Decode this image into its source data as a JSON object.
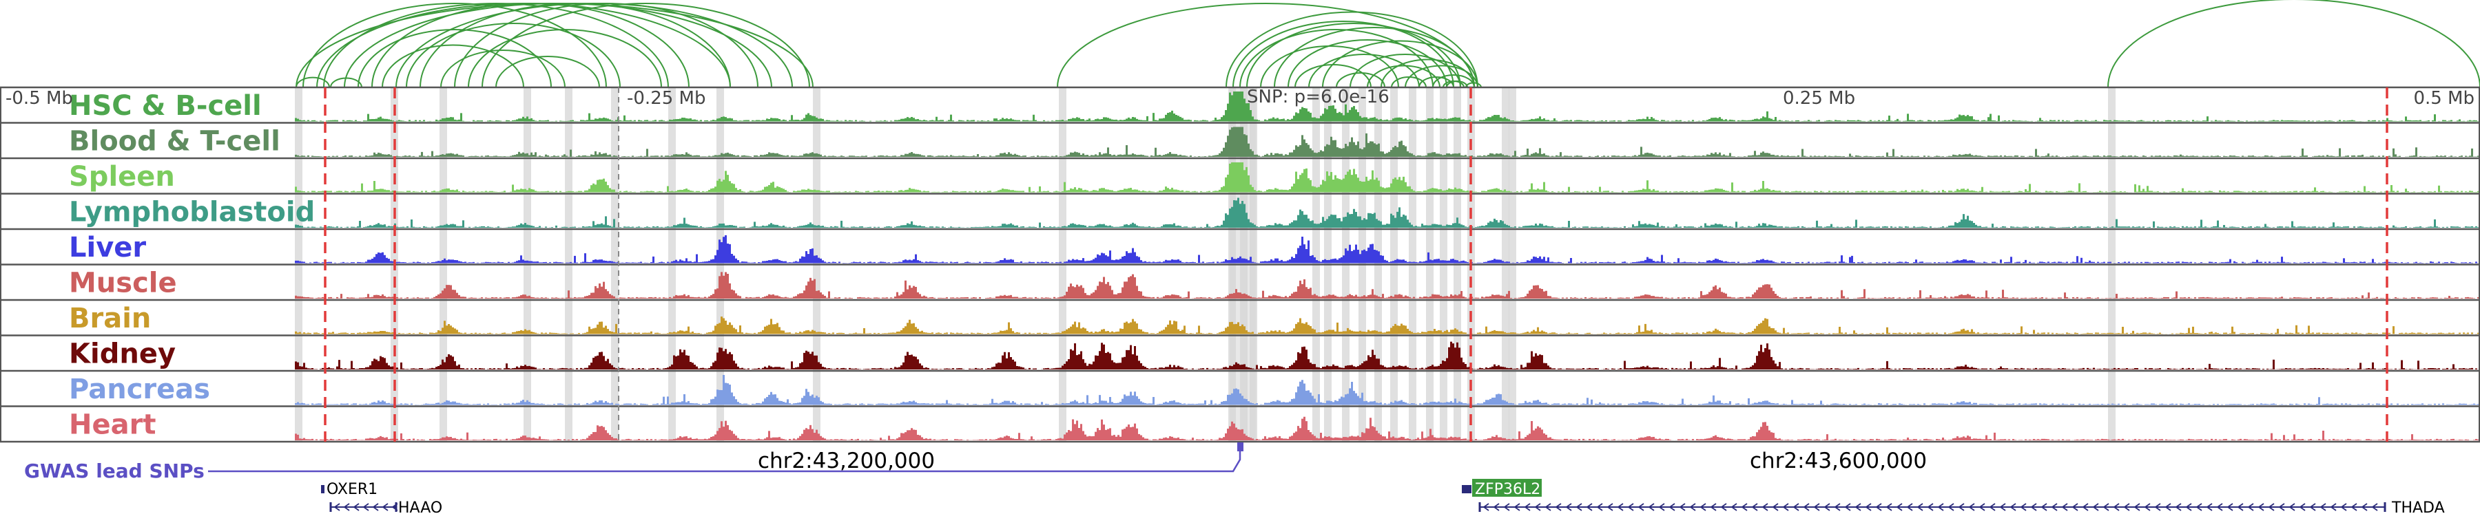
{
  "colors": {
    "loop": "#3c9a3c",
    "track_border": "#555555",
    "lead_snp_line": "#e23a3a",
    "highlight_band": "#d6d6d6",
    "gwas": "#5b4fc4",
    "gene": "#2a2a7a",
    "zfp_box": "#3c9a3c"
  },
  "tracks": [
    {
      "name": "HSC & B-cell",
      "color": "#4ea64e"
    },
    {
      "name": "Blood & T-cell",
      "color": "#5f8c5f"
    },
    {
      "name": "Spleen",
      "color": "#7ccc5e"
    },
    {
      "name": "Lymphoblastoid",
      "color": "#3e9c86"
    },
    {
      "name": "Liver",
      "color": "#3d3de0"
    },
    {
      "name": "Muscle",
      "color": "#cc5e5e"
    },
    {
      "name": "Brain",
      "color": "#c89a2a"
    },
    {
      "name": "Kidney",
      "color": "#6e0a0a"
    },
    {
      "name": "Pancreas",
      "color": "#7f9ee3"
    },
    {
      "name": "Heart",
      "color": "#d8646e"
    }
  ],
  "axis": {
    "ticks": [
      "-0.5 Mb",
      "-0.25 Mb",
      "0.25 Mb",
      "0.5 Mb"
    ],
    "snp_label": "SNP: p=6.0e-16"
  },
  "gwas_label": "GWAS lead SNPs",
  "chromosome_labels": [
    "chr2:43,200,000",
    "chr2:43,600,000"
  ],
  "genes": {
    "oxer1": "OXER1",
    "haao": "HAAO",
    "zfp36l2": "ZFP36L2",
    "thada": "THADA"
  }
}
